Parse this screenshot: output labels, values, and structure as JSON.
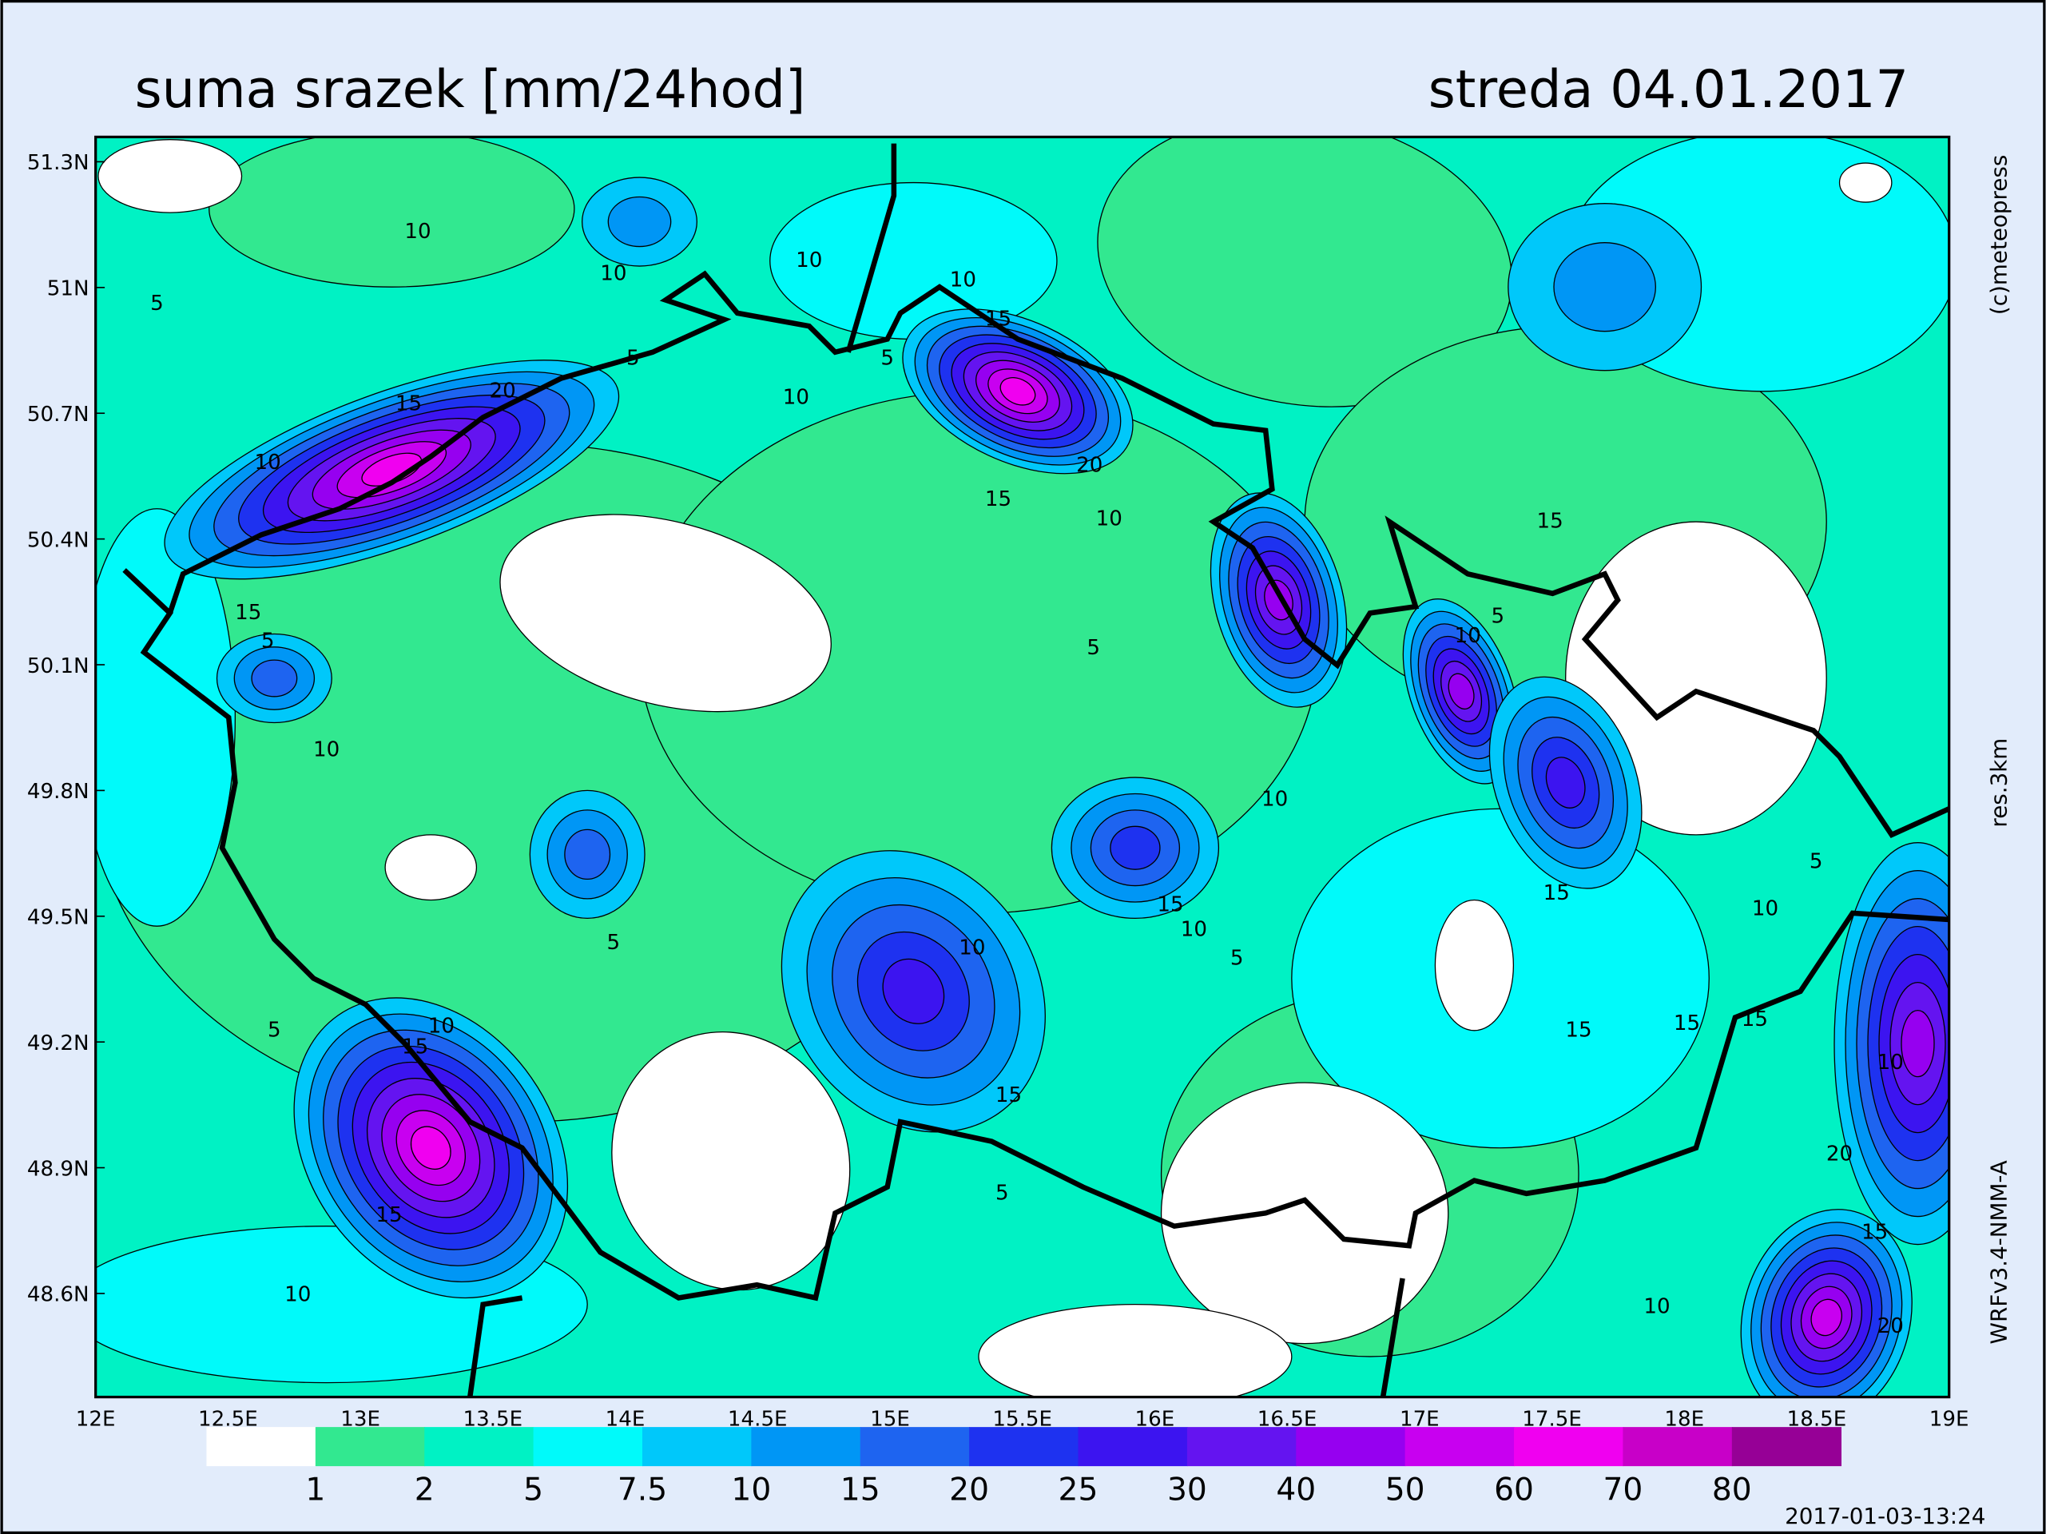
{
  "header": {
    "title": "suma srazek [mm/24hod]",
    "date": "streda 04.01.2017"
  },
  "map": {
    "lat_labels": [
      "51.3N",
      "51N",
      "50.7N",
      "50.4N",
      "50.1N",
      "49.8N",
      "49.5N",
      "49.2N",
      "48.9N",
      "48.6N"
    ],
    "lon_labels": [
      "12E",
      "12.5E",
      "13E",
      "13.5E",
      "14E",
      "14.5E",
      "15E",
      "15.5E",
      "16E",
      "16.5E",
      "17E",
      "17.5E",
      "18E",
      "18.5E",
      "19E"
    ],
    "contour_labels": [
      "10",
      "10",
      "5",
      "10",
      "5",
      "15",
      "20",
      "10",
      "15",
      "5",
      "10",
      "5",
      "10",
      "15",
      "15",
      "20",
      "15",
      "10",
      "5",
      "10",
      "5",
      "10",
      "10",
      "15",
      "10",
      "15",
      "10",
      "15",
      "15",
      "10",
      "15",
      "5",
      "15",
      "5",
      "10",
      "15",
      "15",
      "10",
      "5",
      "5",
      "20",
      "15",
      "10",
      "20",
      "10",
      "5"
    ]
  },
  "legend": {
    "colors": [
      "#ffffff",
      "#32e890",
      "#00f2c4",
      "#00fafa",
      "#00c8fa",
      "#0096f5",
      "#1e64f0",
      "#1e32f0",
      "#3c14f0",
      "#6414f0",
      "#9600f0",
      "#c800f0",
      "#f000f0",
      "#c800c8",
      "#960096"
    ],
    "labels": [
      1,
      2,
      5,
      7.5,
      10,
      15,
      20,
      25,
      30,
      40,
      50,
      60,
      70,
      80
    ]
  },
  "side": {
    "copyright": "(c)meteopress",
    "resolution": "res.3km",
    "model": "WRFv3.4-NMM-A",
    "timestamp": "2017-01-03-13:24"
  }
}
